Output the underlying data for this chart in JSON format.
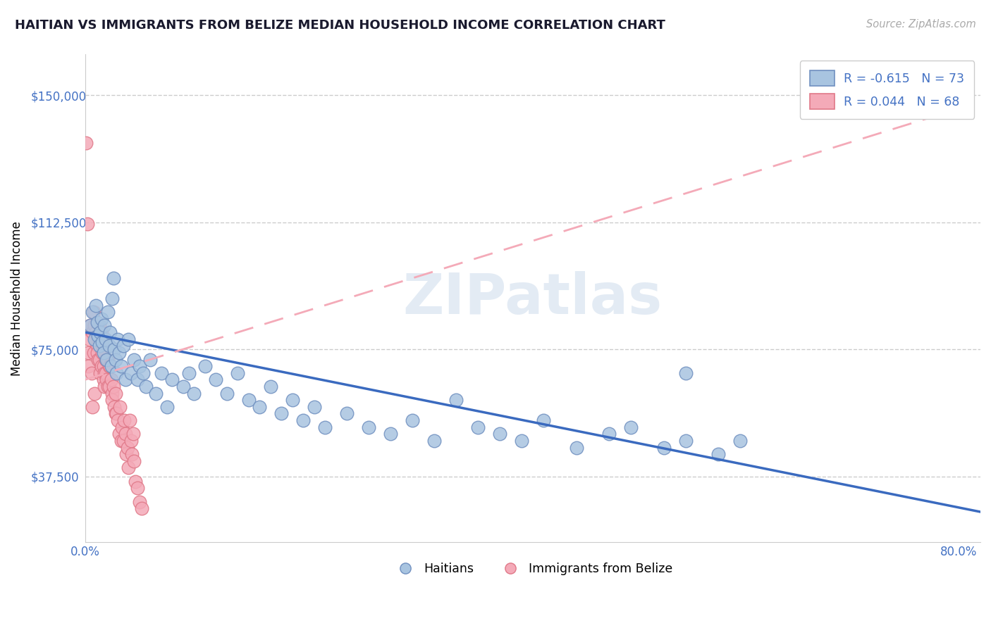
{
  "title": "HAITIAN VS IMMIGRANTS FROM BELIZE MEDIAN HOUSEHOLD INCOME CORRELATION CHART",
  "source": "Source: ZipAtlas.com",
  "ylabel": "Median Household Income",
  "xlim": [
    0.0,
    0.82
  ],
  "ylim": [
    18000,
    162000
  ],
  "yticks": [
    37500,
    75000,
    112500,
    150000
  ],
  "ytick_labels": [
    "$37,500",
    "$75,000",
    "$112,500",
    "$150,000"
  ],
  "xticks": [
    0.0,
    0.1,
    0.2,
    0.3,
    0.4,
    0.5,
    0.6,
    0.7,
    0.8
  ],
  "xtick_labels": [
    "0.0%",
    "",
    "",
    "",
    "",
    "",
    "",
    "",
    "80.0%"
  ],
  "blue_fill": "#a8c4e0",
  "blue_edge": "#7090c0",
  "pink_fill": "#f4aab8",
  "pink_edge": "#e07888",
  "trend_blue": "#3a6abf",
  "trend_pink": "#f4aab8",
  "R_blue": -0.615,
  "N_blue": 73,
  "R_pink": 0.044,
  "N_pink": 68,
  "legend_label_blue": "Haitians",
  "legend_label_pink": "Immigrants from Belize",
  "watermark": "ZIPatlas",
  "grid_color": "#cccccc",
  "blue_x": [
    0.005,
    0.007,
    0.009,
    0.01,
    0.011,
    0.012,
    0.013,
    0.014,
    0.015,
    0.016,
    0.017,
    0.018,
    0.019,
    0.02,
    0.021,
    0.022,
    0.023,
    0.024,
    0.025,
    0.026,
    0.027,
    0.028,
    0.029,
    0.03,
    0.031,
    0.033,
    0.035,
    0.037,
    0.04,
    0.042,
    0.045,
    0.048,
    0.05,
    0.053,
    0.056,
    0.06,
    0.065,
    0.07,
    0.075,
    0.08,
    0.09,
    0.095,
    0.1,
    0.11,
    0.12,
    0.13,
    0.14,
    0.15,
    0.16,
    0.17,
    0.18,
    0.19,
    0.2,
    0.21,
    0.22,
    0.24,
    0.26,
    0.28,
    0.3,
    0.32,
    0.34,
    0.36,
    0.38,
    0.4,
    0.42,
    0.45,
    0.48,
    0.5,
    0.53,
    0.55,
    0.58,
    0.6,
    0.55
  ],
  "blue_y": [
    82000,
    86000,
    78000,
    88000,
    83000,
    79000,
    76000,
    80000,
    84000,
    77000,
    74000,
    82000,
    78000,
    72000,
    86000,
    76000,
    80000,
    70000,
    90000,
    96000,
    75000,
    72000,
    68000,
    78000,
    74000,
    70000,
    76000,
    66000,
    78000,
    68000,
    72000,
    66000,
    70000,
    68000,
    64000,
    72000,
    62000,
    68000,
    58000,
    66000,
    64000,
    68000,
    62000,
    70000,
    66000,
    62000,
    68000,
    60000,
    58000,
    64000,
    56000,
    60000,
    54000,
    58000,
    52000,
    56000,
    52000,
    50000,
    54000,
    48000,
    60000,
    52000,
    50000,
    48000,
    54000,
    46000,
    50000,
    52000,
    46000,
    48000,
    44000,
    48000,
    68000
  ],
  "pink_x": [
    0.001,
    0.002,
    0.003,
    0.003,
    0.004,
    0.005,
    0.006,
    0.007,
    0.007,
    0.008,
    0.008,
    0.009,
    0.009,
    0.01,
    0.01,
    0.011,
    0.011,
    0.012,
    0.012,
    0.013,
    0.013,
    0.014,
    0.014,
    0.015,
    0.015,
    0.016,
    0.016,
    0.017,
    0.017,
    0.018,
    0.018,
    0.019,
    0.019,
    0.02,
    0.02,
    0.021,
    0.021,
    0.022,
    0.022,
    0.023,
    0.024,
    0.025,
    0.025,
    0.026,
    0.027,
    0.028,
    0.028,
    0.029,
    0.03,
    0.031,
    0.032,
    0.033,
    0.034,
    0.035,
    0.036,
    0.037,
    0.038,
    0.039,
    0.04,
    0.041,
    0.042,
    0.043,
    0.044,
    0.045,
    0.046,
    0.048,
    0.05,
    0.052
  ],
  "pink_y": [
    136000,
    112000,
    74000,
    70000,
    78000,
    82000,
    68000,
    80000,
    58000,
    74000,
    86000,
    62000,
    82000,
    78000,
    80000,
    76000,
    74000,
    78000,
    72000,
    82000,
    72000,
    76000,
    68000,
    80000,
    70000,
    76000,
    74000,
    70000,
    66000,
    68000,
    64000,
    72000,
    68000,
    72000,
    66000,
    72000,
    64000,
    70000,
    64000,
    70000,
    66000,
    62000,
    60000,
    64000,
    58000,
    62000,
    56000,
    56000,
    54000,
    50000,
    58000,
    48000,
    52000,
    48000,
    54000,
    50000,
    44000,
    46000,
    40000,
    54000,
    48000,
    44000,
    50000,
    42000,
    36000,
    34000,
    30000,
    28000
  ],
  "blue_trend_x0": 0.0,
  "blue_trend_y0": 80000,
  "blue_trend_x1": 0.82,
  "blue_trend_y1": 27000,
  "pink_trend_x0": 0.0,
  "pink_trend_y0": 66000,
  "pink_trend_x1": 0.82,
  "pink_trend_y1": 148000
}
